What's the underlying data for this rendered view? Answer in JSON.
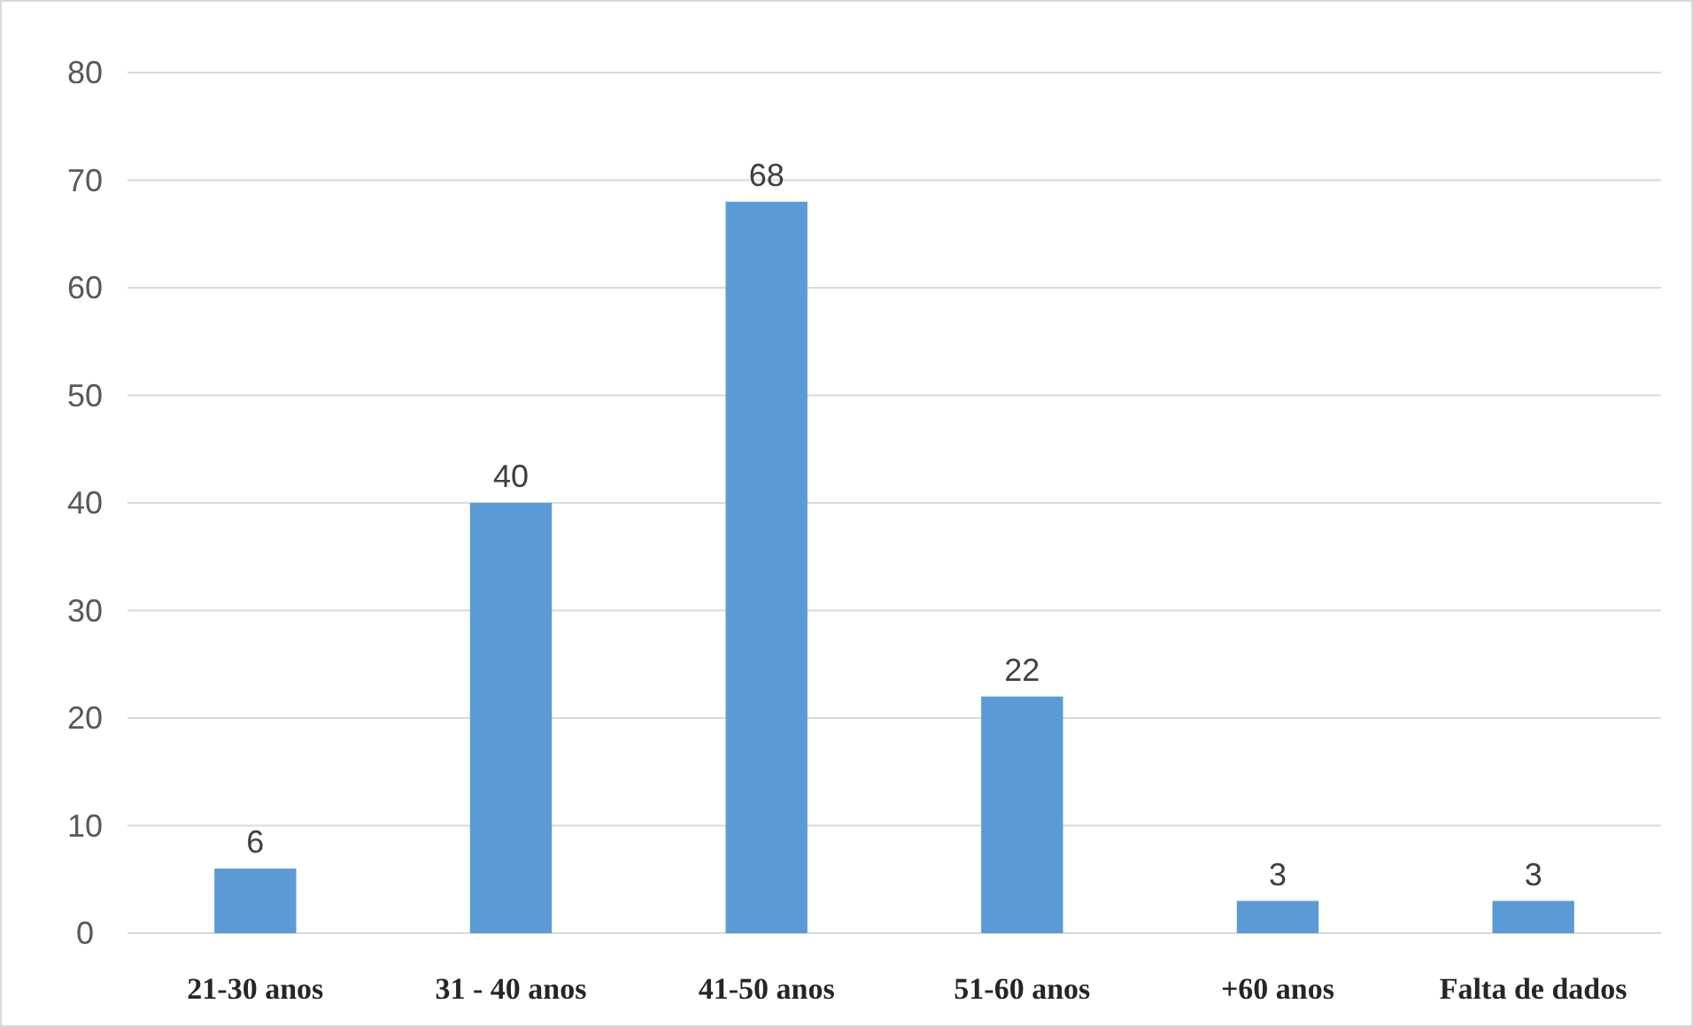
{
  "chart_data": {
    "type": "bar",
    "categories": [
      "21-30 anos",
      "31 - 40 anos",
      "41-50 anos",
      "51-60 anos",
      "+60 anos",
      "Falta de dados"
    ],
    "values": [
      6,
      40,
      68,
      22,
      3,
      3
    ],
    "color": "#5b9bd5",
    "ylim": [
      0,
      80
    ],
    "yticks": [
      0,
      10,
      20,
      30,
      40,
      50,
      60,
      70,
      80
    ],
    "grid": "y",
    "data_labels": true
  }
}
